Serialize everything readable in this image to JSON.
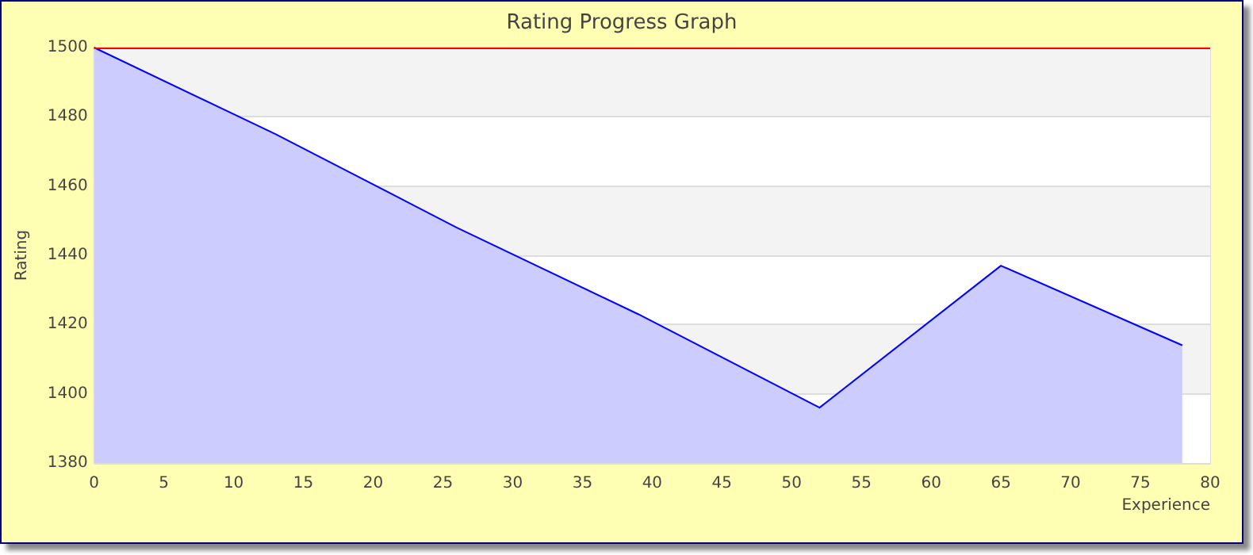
{
  "chart_data": {
    "type": "area",
    "title": "Rating Progress Graph",
    "xlabel": "Experience",
    "ylabel": "Rating",
    "x": [
      0,
      13,
      26,
      39,
      52,
      65,
      78
    ],
    "series": [
      {
        "color": "#0000ff",
        "values": [
          1500,
          1475,
          1448,
          1423,
          1396,
          1437,
          1414
        ]
      }
    ],
    "xlim": [
      0,
      80
    ],
    "xticks": [
      0,
      5,
      10,
      15,
      20,
      25,
      30,
      35,
      40,
      45,
      50,
      55,
      60,
      65,
      70,
      75,
      80
    ],
    "ylim": [
      1380,
      1500
    ],
    "yticks": [
      1380,
      1400,
      1420,
      1440,
      1460,
      1480,
      1500
    ],
    "ref_lines": [
      {
        "axis": "y",
        "value": 1500,
        "color": "#ff0000"
      }
    ],
    "grid": "y",
    "marker": "none",
    "line_style": "solid"
  }
}
